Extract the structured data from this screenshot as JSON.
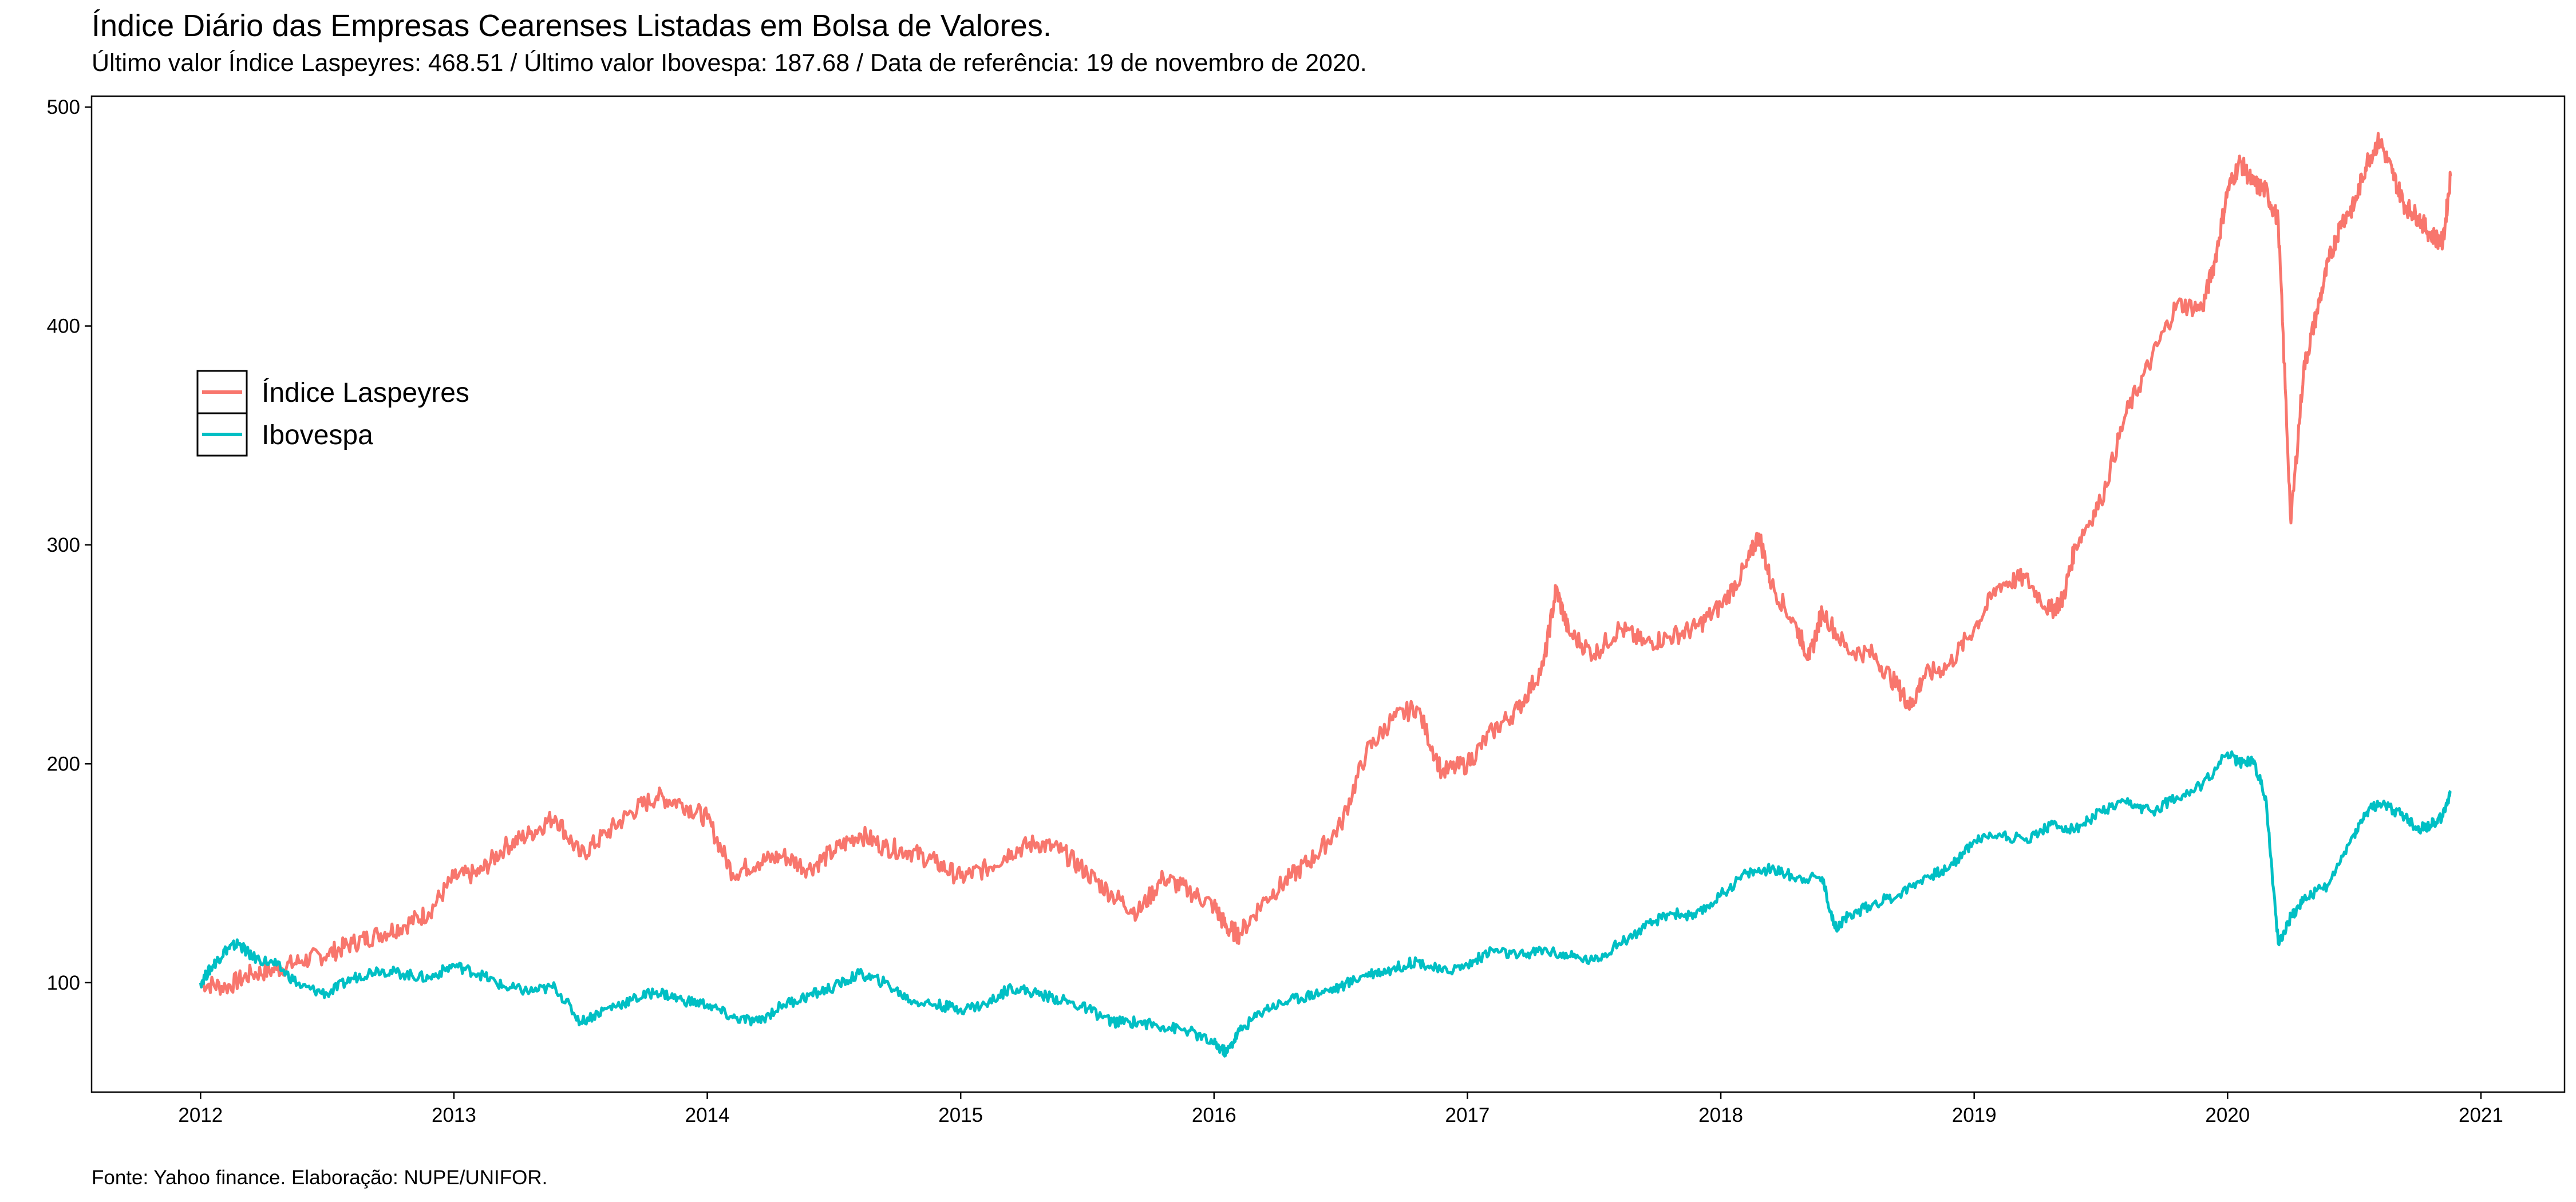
{
  "chart_data": {
    "type": "line",
    "title": "Índice Diário das Empresas Cearenses Listadas em Bolsa de Valores.",
    "subtitle": "Último valor Índice Laspeyres: 468.51 / Último valor Ibovespa: 187.68 / Data de referência: 19 de novembro de 2020.",
    "caption": "Fonte: Yahoo finance. Elaboração: NUPE/UNIFOR.",
    "xlabel": "",
    "ylabel": "",
    "xlim": [
      2011.57,
      2021.33
    ],
    "ylim": [
      50,
      505
    ],
    "x_ticks": [
      2012,
      2013,
      2014,
      2015,
      2016,
      2017,
      2018,
      2019,
      2020,
      2021
    ],
    "x_tick_labels": [
      "2012",
      "2013",
      "2014",
      "2015",
      "2016",
      "2017",
      "2018",
      "2019",
      "2020",
      "2021"
    ],
    "y_ticks": [
      100,
      200,
      300,
      400,
      500
    ],
    "y_tick_labels": [
      "100",
      "200",
      "300",
      "400",
      "500"
    ],
    "grid": false,
    "legend": {
      "position": "left-upper",
      "entries": [
        "Índice Laspeyres",
        "Ibovespa"
      ]
    },
    "series": [
      {
        "name": "Índice Laspeyres",
        "color": "#F8766D",
        "points": [
          [
            2012.0,
            100
          ],
          [
            2012.1,
            98
          ],
          [
            2012.2,
            104
          ],
          [
            2012.3,
            106
          ],
          [
            2012.4,
            110
          ],
          [
            2012.5,
            113
          ],
          [
            2012.6,
            118
          ],
          [
            2012.7,
            122
          ],
          [
            2012.8,
            126
          ],
          [
            2012.9,
            132
          ],
          [
            2013.0,
            148
          ],
          [
            2013.1,
            150
          ],
          [
            2013.2,
            162
          ],
          [
            2013.3,
            168
          ],
          [
            2013.4,
            176
          ],
          [
            2013.5,
            158
          ],
          [
            2013.6,
            168
          ],
          [
            2013.7,
            178
          ],
          [
            2013.8,
            185
          ],
          [
            2013.9,
            182
          ],
          [
            2014.0,
            175
          ],
          [
            2014.1,
            150
          ],
          [
            2014.2,
            155
          ],
          [
            2014.3,
            158
          ],
          [
            2014.4,
            152
          ],
          [
            2014.5,
            160
          ],
          [
            2014.6,
            168
          ],
          [
            2014.7,
            162
          ],
          [
            2014.8,
            160
          ],
          [
            2014.9,
            155
          ],
          [
            2015.0,
            148
          ],
          [
            2015.1,
            152
          ],
          [
            2015.2,
            160
          ],
          [
            2015.3,
            164
          ],
          [
            2015.4,
            160
          ],
          [
            2015.5,
            150
          ],
          [
            2015.6,
            140
          ],
          [
            2015.7,
            132
          ],
          [
            2015.8,
            148
          ],
          [
            2015.9,
            142
          ],
          [
            2016.0,
            135
          ],
          [
            2016.05,
            125
          ],
          [
            2016.1,
            122
          ],
          [
            2016.2,
            138
          ],
          [
            2016.3,
            148
          ],
          [
            2016.4,
            158
          ],
          [
            2016.5,
            172
          ],
          [
            2016.6,
            205
          ],
          [
            2016.7,
            220
          ],
          [
            2016.8,
            226
          ],
          [
            2016.9,
            196
          ],
          [
            2017.0,
            200
          ],
          [
            2017.1,
            215
          ],
          [
            2017.2,
            225
          ],
          [
            2017.3,
            245
          ],
          [
            2017.35,
            280
          ],
          [
            2017.4,
            260
          ],
          [
            2017.5,
            250
          ],
          [
            2017.6,
            262
          ],
          [
            2017.7,
            255
          ],
          [
            2017.8,
            258
          ],
          [
            2017.9,
            262
          ],
          [
            2018.0,
            272
          ],
          [
            2018.1,
            290
          ],
          [
            2018.15,
            305
          ],
          [
            2018.2,
            282
          ],
          [
            2018.3,
            262
          ],
          [
            2018.35,
            248
          ],
          [
            2018.4,
            270
          ],
          [
            2018.5,
            252
          ],
          [
            2018.6,
            250
          ],
          [
            2018.7,
            235
          ],
          [
            2018.75,
            226
          ],
          [
            2018.8,
            240
          ],
          [
            2018.9,
            245
          ],
          [
            2019.0,
            262
          ],
          [
            2019.1,
            282
          ],
          [
            2019.2,
            285
          ],
          [
            2019.3,
            270
          ],
          [
            2019.35,
            275
          ],
          [
            2019.4,
            300
          ],
          [
            2019.5,
            320
          ],
          [
            2019.6,
            360
          ],
          [
            2019.7,
            385
          ],
          [
            2019.8,
            410
          ],
          [
            2019.9,
            408
          ],
          [
            2019.95,
            430
          ],
          [
            2020.0,
            462
          ],
          [
            2020.05,
            475
          ],
          [
            2020.1,
            465
          ],
          [
            2020.15,
            462
          ],
          [
            2020.2,
            448
          ],
          [
            2020.25,
            310
          ],
          [
            2020.3,
            380
          ],
          [
            2020.35,
            405
          ],
          [
            2020.4,
            430
          ],
          [
            2020.45,
            448
          ],
          [
            2020.5,
            455
          ],
          [
            2020.55,
            475
          ],
          [
            2020.6,
            485
          ],
          [
            2020.65,
            470
          ],
          [
            2020.7,
            455
          ],
          [
            2020.75,
            450
          ],
          [
            2020.8,
            442
          ],
          [
            2020.85,
            438
          ],
          [
            2020.88,
            468.51
          ]
        ]
      },
      {
        "name": "Ibovespa",
        "color": "#00BFC4",
        "points": [
          [
            2012.0,
            100
          ],
          [
            2012.05,
            108
          ],
          [
            2012.1,
            115
          ],
          [
            2012.15,
            118
          ],
          [
            2012.2,
            112
          ],
          [
            2012.3,
            108
          ],
          [
            2012.4,
            98
          ],
          [
            2012.5,
            95
          ],
          [
            2012.6,
            102
          ],
          [
            2012.7,
            106
          ],
          [
            2012.8,
            104
          ],
          [
            2012.9,
            102
          ],
          [
            2013.0,
            108
          ],
          [
            2013.1,
            104
          ],
          [
            2013.2,
            98
          ],
          [
            2013.3,
            96
          ],
          [
            2013.4,
            98
          ],
          [
            2013.5,
            82
          ],
          [
            2013.6,
            88
          ],
          [
            2013.7,
            92
          ],
          [
            2013.8,
            96
          ],
          [
            2013.9,
            92
          ],
          [
            2014.0,
            90
          ],
          [
            2014.1,
            84
          ],
          [
            2014.2,
            82
          ],
          [
            2014.3,
            90
          ],
          [
            2014.4,
            94
          ],
          [
            2014.5,
            98
          ],
          [
            2014.6,
            104
          ],
          [
            2014.7,
            100
          ],
          [
            2014.8,
            92
          ],
          [
            2014.9,
            90
          ],
          [
            2015.0,
            88
          ],
          [
            2015.1,
            90
          ],
          [
            2015.2,
            98
          ],
          [
            2015.3,
            95
          ],
          [
            2015.4,
            92
          ],
          [
            2015.5,
            88
          ],
          [
            2015.6,
            82
          ],
          [
            2015.7,
            82
          ],
          [
            2015.8,
            80
          ],
          [
            2015.9,
            78
          ],
          [
            2016.0,
            72
          ],
          [
            2016.05,
            68
          ],
          [
            2016.1,
            78
          ],
          [
            2016.2,
            88
          ],
          [
            2016.3,
            92
          ],
          [
            2016.4,
            95
          ],
          [
            2016.5,
            98
          ],
          [
            2016.6,
            104
          ],
          [
            2016.7,
            106
          ],
          [
            2016.8,
            110
          ],
          [
            2016.9,
            105
          ],
          [
            2017.0,
            108
          ],
          [
            2017.1,
            115
          ],
          [
            2017.2,
            112
          ],
          [
            2017.3,
            115
          ],
          [
            2017.4,
            112
          ],
          [
            2017.5,
            110
          ],
          [
            2017.6,
            118
          ],
          [
            2017.7,
            125
          ],
          [
            2017.8,
            132
          ],
          [
            2017.9,
            130
          ],
          [
            2018.0,
            140
          ],
          [
            2018.1,
            150
          ],
          [
            2018.2,
            152
          ],
          [
            2018.3,
            148
          ],
          [
            2018.4,
            148
          ],
          [
            2018.45,
            125
          ],
          [
            2018.5,
            130
          ],
          [
            2018.6,
            136
          ],
          [
            2018.7,
            140
          ],
          [
            2018.8,
            148
          ],
          [
            2018.9,
            152
          ],
          [
            2019.0,
            165
          ],
          [
            2019.1,
            168
          ],
          [
            2019.2,
            165
          ],
          [
            2019.3,
            172
          ],
          [
            2019.4,
            170
          ],
          [
            2019.5,
            178
          ],
          [
            2019.6,
            182
          ],
          [
            2019.7,
            178
          ],
          [
            2019.8,
            185
          ],
          [
            2019.9,
            190
          ],
          [
            2020.0,
            205
          ],
          [
            2020.05,
            200
          ],
          [
            2020.1,
            202
          ],
          [
            2020.15,
            185
          ],
          [
            2020.2,
            118
          ],
          [
            2020.25,
            130
          ],
          [
            2020.3,
            138
          ],
          [
            2020.4,
            145
          ],
          [
            2020.5,
            168
          ],
          [
            2020.55,
            178
          ],
          [
            2020.6,
            182
          ],
          [
            2020.7,
            176
          ],
          [
            2020.75,
            170
          ],
          [
            2020.8,
            172
          ],
          [
            2020.85,
            176
          ],
          [
            2020.88,
            187.68
          ]
        ]
      }
    ]
  }
}
